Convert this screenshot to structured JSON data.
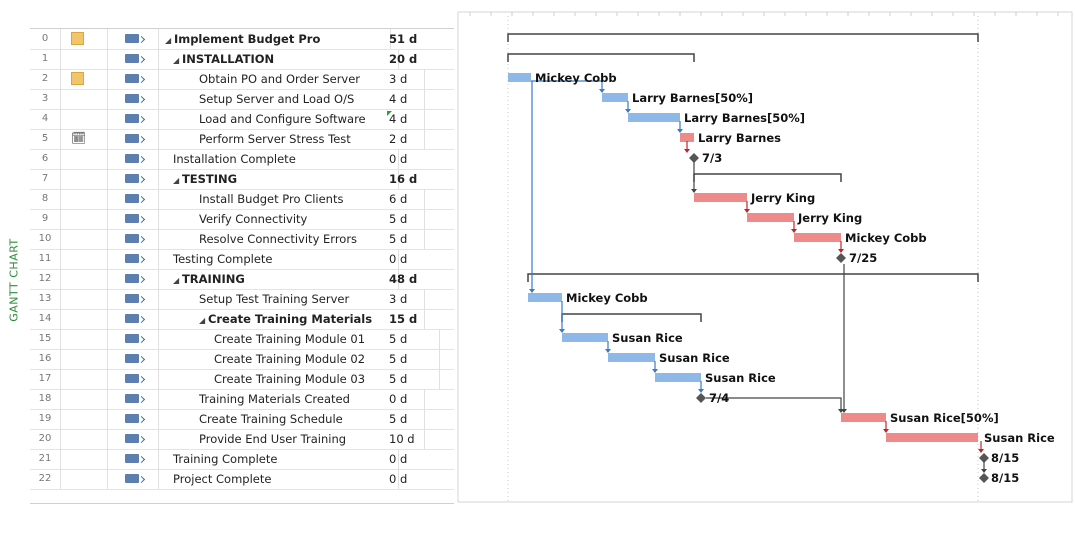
{
  "view_label": "GANTT CHART",
  "tasks": [
    {
      "id": "0",
      "name": "Implement Budget Pro",
      "duration": "51 d",
      "summary": true,
      "indent": 0,
      "indicator": "note"
    },
    {
      "id": "1",
      "name": "INSTALLATION",
      "duration": "20 d",
      "summary": true,
      "indent": 1,
      "indicator": ""
    },
    {
      "id": "2",
      "name": "Obtain PO and Order Server",
      "duration": "3 d",
      "summary": false,
      "indent": 2,
      "indicator": "note"
    },
    {
      "id": "3",
      "name": "Setup Server and Load O/S",
      "duration": "4 d",
      "summary": false,
      "indent": 2,
      "indicator": ""
    },
    {
      "id": "4",
      "name": "Load and Configure Software",
      "duration": "4 d",
      "summary": false,
      "indent": 2,
      "indicator": "",
      "flag": true
    },
    {
      "id": "5",
      "name": "Perform Server Stress Test",
      "duration": "2 d",
      "summary": false,
      "indent": 2,
      "indicator": "calendar"
    },
    {
      "id": "6",
      "name": "Installation Complete",
      "duration": "0 d",
      "summary": false,
      "indent": 1,
      "indicator": ""
    },
    {
      "id": "7",
      "name": "TESTING",
      "duration": "16 d",
      "summary": true,
      "indent": 1,
      "indicator": ""
    },
    {
      "id": "8",
      "name": "Install Budget Pro Clients",
      "duration": "6 d",
      "summary": false,
      "indent": 2,
      "indicator": ""
    },
    {
      "id": "9",
      "name": "Verify Connectivity",
      "duration": "5 d",
      "summary": false,
      "indent": 2,
      "indicator": ""
    },
    {
      "id": "10",
      "name": "Resolve Connectivity Errors",
      "duration": "5 d",
      "summary": false,
      "indent": 2,
      "indicator": ""
    },
    {
      "id": "11",
      "name": "Testing Complete",
      "duration": "0 d",
      "summary": false,
      "indent": 1,
      "indicator": ""
    },
    {
      "id": "12",
      "name": "TRAINING",
      "duration": "48 d",
      "summary": true,
      "indent": 1,
      "indicator": ""
    },
    {
      "id": "13",
      "name": "Setup Test Training Server",
      "duration": "3 d",
      "summary": false,
      "indent": 2,
      "indicator": ""
    },
    {
      "id": "14",
      "name": "Create Training Materials",
      "duration": "15 d",
      "summary": true,
      "indent": 2,
      "indicator": ""
    },
    {
      "id": "15",
      "name": "Create Training Module 01",
      "duration": "5 d",
      "summary": false,
      "indent": 3,
      "indicator": ""
    },
    {
      "id": "16",
      "name": "Create Training Module 02",
      "duration": "5 d",
      "summary": false,
      "indent": 3,
      "indicator": ""
    },
    {
      "id": "17",
      "name": "Create Training Module 03",
      "duration": "5 d",
      "summary": false,
      "indent": 3,
      "indicator": ""
    },
    {
      "id": "18",
      "name": "Training Materials Created",
      "duration": "0 d",
      "summary": false,
      "indent": 2,
      "indicator": ""
    },
    {
      "id": "19",
      "name": "Create Training Schedule",
      "duration": "5 d",
      "summary": false,
      "indent": 2,
      "indicator": ""
    },
    {
      "id": "20",
      "name": "Provide End User Training",
      "duration": "10 d",
      "summary": false,
      "indent": 2,
      "indicator": ""
    },
    {
      "id": "21",
      "name": "Training Complete",
      "duration": "0 d",
      "summary": false,
      "indent": 1,
      "indicator": ""
    },
    {
      "id": "22",
      "name": "Project Complete",
      "duration": "0 d",
      "summary": false,
      "indent": 1,
      "indicator": ""
    }
  ],
  "gantt_labels": [
    {
      "row": 2,
      "text": "Mickey Cobb"
    },
    {
      "row": 3,
      "text": "Larry Barnes[50%]"
    },
    {
      "row": 4,
      "text": "Larry Barnes[50%]"
    },
    {
      "row": 5,
      "text": "Larry Barnes"
    },
    {
      "row": 6,
      "text": "7/3"
    },
    {
      "row": 8,
      "text": "Jerry King"
    },
    {
      "row": 9,
      "text": "Jerry King"
    },
    {
      "row": 10,
      "text": "Mickey Cobb"
    },
    {
      "row": 11,
      "text": "7/25"
    },
    {
      "row": 13,
      "text": "Mickey Cobb"
    },
    {
      "row": 15,
      "text": "Susan Rice"
    },
    {
      "row": 16,
      "text": "Susan Rice"
    },
    {
      "row": 17,
      "text": "Susan Rice"
    },
    {
      "row": 18,
      "text": "7/4"
    },
    {
      "row": 19,
      "text": "Susan Rice[50%]"
    },
    {
      "row": 20,
      "text": "Susan Rice"
    },
    {
      "row": 21,
      "text": "8/15"
    },
    {
      "row": 22,
      "text": "8/15"
    }
  ],
  "colors": {
    "normal_bar": "#8db8e8",
    "critical_bar": "#ef8a8a",
    "summary_bar": "#444444",
    "link_normal": "#3a7cc4",
    "link_critical": "#c0272d",
    "milestone": "#555555"
  }
}
